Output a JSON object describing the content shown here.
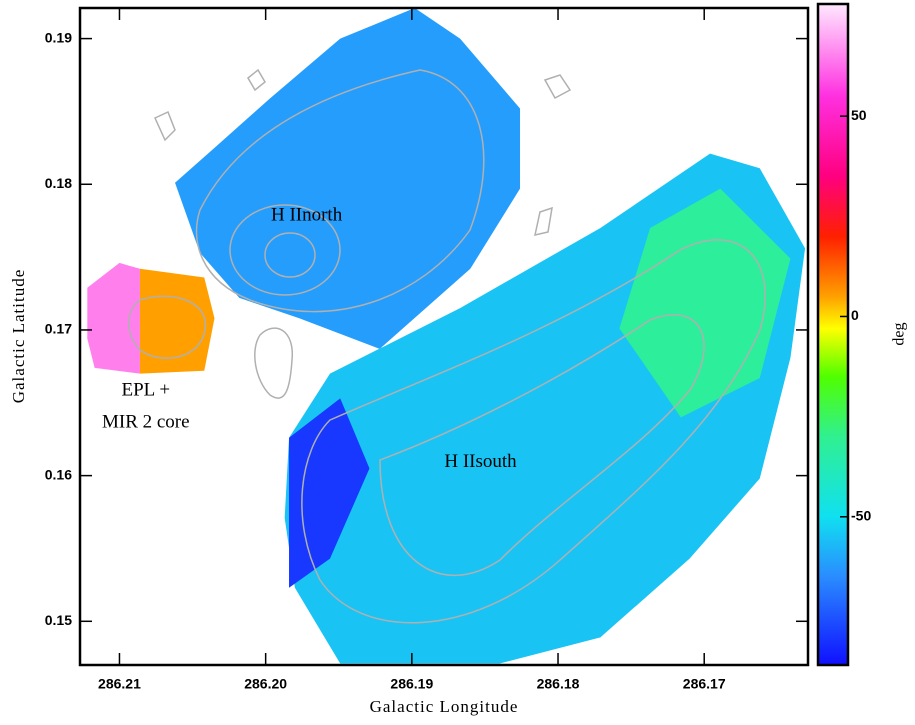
{
  "chart_data": {
    "type": "map",
    "xlabel": "Galactic Longitude",
    "ylabel": "Galactic Latitude",
    "xlim": [
      286.2127,
      286.1629
    ],
    "ylim": [
      0.147,
      0.1921
    ],
    "xticks": [
      286.21,
      {
        "value": 286.2,
        "label": "286.20"
      },
      286.19,
      286.18,
      286.17
    ],
    "yticks": [
      0.19,
      0.18,
      0.17,
      0.16,
      0.15
    ],
    "colorbar": {
      "label": "deg",
      "lim": [
        -87,
        78
      ],
      "ticks": [
        50,
        0,
        -50
      ],
      "colorscale": [
        {
          "value": -87,
          "color": "#1010ff"
        },
        {
          "value": -65,
          "color": "#2a8cff"
        },
        {
          "value": -50,
          "color": "#10e0f0"
        },
        {
          "value": -30,
          "color": "#30f090"
        },
        {
          "value": -15,
          "color": "#50ff00"
        },
        {
          "value": -3,
          "color": "#ffff00"
        },
        {
          "value": 5,
          "color": "#ffa000"
        },
        {
          "value": 20,
          "color": "#ff2000"
        },
        {
          "value": 35,
          "color": "#ff0080"
        },
        {
          "value": 55,
          "color": "#ff30e0"
        },
        {
          "value": 78,
          "color": "#ffe8ff"
        }
      ]
    },
    "regions": [
      {
        "value": -62,
        "lon": [
          286.2062,
          286.2035,
          286.1997,
          286.1949,
          286.1898,
          286.1867,
          286.1826,
          286.1826,
          286.186,
          286.1922,
          286.1977,
          286.2018,
          286.2045
        ],
        "lat": [
          0.1801,
          0.1825,
          0.1859,
          0.19,
          0.1921,
          0.19,
          0.1852,
          0.1797,
          0.1742,
          0.1687,
          0.1708,
          0.1722,
          0.1753
        ]
      },
      {
        "value": -55,
        "lon": [
          286.1984,
          286.1956,
          286.1867,
          286.1771,
          286.1696,
          286.1662,
          286.1631,
          286.1641,
          286.1662,
          286.171,
          286.1771,
          286.184,
          286.1949,
          286.198,
          286.1987
        ],
        "lat": [
          0.1626,
          0.167,
          0.1715,
          0.177,
          0.1821,
          0.1811,
          0.1756,
          0.1681,
          0.1598,
          0.1543,
          0.1489,
          0.1471,
          0.1471,
          0.1523,
          0.1571
        ]
      },
      {
        "value": -80,
        "lon": [
          286.1984,
          286.1949,
          286.1929,
          286.1956,
          286.1984
        ],
        "lat": [
          0.1626,
          0.1653,
          0.1605,
          0.1543,
          0.1523
        ]
      },
      {
        "value": -32,
        "lon": [
          286.1737,
          286.1689,
          286.1641,
          286.1662,
          286.1716,
          286.1758
        ],
        "lat": [
          0.177,
          0.1797,
          0.1749,
          0.1667,
          0.164,
          0.1701
        ]
      },
      {
        "value": 65,
        "lon": [
          286.2122,
          286.21,
          286.2086,
          286.2086,
          286.2117,
          286.2122
        ],
        "lat": [
          0.1729,
          0.1746,
          0.1742,
          0.167,
          0.1674,
          0.1694
        ]
      },
      {
        "value": 5,
        "lon": [
          286.2086,
          286.2042,
          286.2035,
          286.2042,
          286.2086
        ],
        "lat": [
          0.1742,
          0.1736,
          0.1708,
          0.1672,
          0.167
        ]
      }
    ],
    "annotations": [
      {
        "text": "H IInorth",
        "lon": 286.1972,
        "lat": 0.1778
      },
      {
        "text": "H IIsouth",
        "lon": 286.1853,
        "lat": 0.1609
      },
      {
        "text": "EPL +",
        "lon": 286.2082,
        "lat": 0.1658
      },
      {
        "text": "MIR 2 core",
        "lon": 286.2082,
        "lat": 0.1636
      }
    ]
  }
}
